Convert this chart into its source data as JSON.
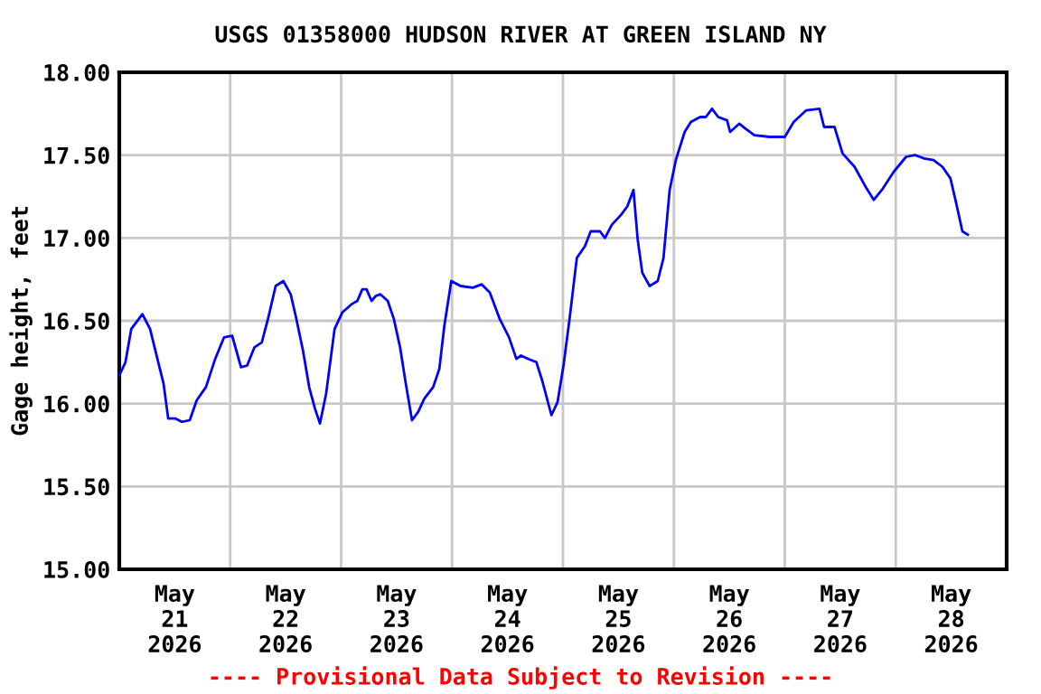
{
  "chart_data": {
    "type": "line",
    "title": "USGS 01358000 HUDSON RIVER AT GREEN ISLAND NY",
    "ylabel": "Gage height, feet",
    "annotations": [
      "---- Provisional Data Subject to Revision ----"
    ],
    "x": [
      "2026-05-21T00:00",
      "2026-05-21T01:20",
      "2026-05-21T02:35",
      "2026-05-21T05:00",
      "2026-05-21T06:40",
      "2026-05-21T08:15",
      "2026-05-21T09:35",
      "2026-05-21T10:35",
      "2026-05-21T12:10",
      "2026-05-21T13:30",
      "2026-05-21T15:15",
      "2026-05-21T16:45",
      "2026-05-21T18:45",
      "2026-05-21T20:45",
      "2026-05-21T22:40",
      "2026-05-22T00:25",
      "2026-05-22T01:20",
      "2026-05-22T02:20",
      "2026-05-22T03:40",
      "2026-05-22T05:15",
      "2026-05-22T06:50",
      "2026-05-22T08:10",
      "2026-05-22T09:50",
      "2026-05-22T11:30",
      "2026-05-22T13:05",
      "2026-05-22T14:10",
      "2026-05-22T15:45",
      "2026-05-22T17:05",
      "2026-05-22T18:20",
      "2026-05-22T19:25",
      "2026-05-22T20:45",
      "2026-05-22T22:35",
      "2026-05-23T00:15",
      "2026-05-23T02:15",
      "2026-05-23T03:30",
      "2026-05-23T04:35",
      "2026-05-23T05:30",
      "2026-05-23T06:35",
      "2026-05-23T07:30",
      "2026-05-23T08:30",
      "2026-05-23T10:05",
      "2026-05-23T11:25",
      "2026-05-23T12:45",
      "2026-05-23T14:00",
      "2026-05-23T15:20",
      "2026-05-23T16:40",
      "2026-05-23T18:00",
      "2026-05-23T19:55",
      "2026-05-23T21:15",
      "2026-05-23T22:20",
      "2026-05-23T23:50",
      "2026-05-24T01:50",
      "2026-05-24T04:30",
      "2026-05-24T06:25",
      "2026-05-24T08:10",
      "2026-05-24T10:20",
      "2026-05-24T12:20",
      "2026-05-24T13:55",
      "2026-05-24T14:55",
      "2026-05-24T16:30",
      "2026-05-24T18:15",
      "2026-05-24T19:30",
      "2026-05-24T21:30",
      "2026-05-24T22:50",
      "2026-05-25T00:10",
      "2026-05-25T01:25",
      "2026-05-25T03:00",
      "2026-05-25T04:45",
      "2026-05-25T06:00",
      "2026-05-25T08:00",
      "2026-05-25T09:05",
      "2026-05-25T10:35",
      "2026-05-25T12:35",
      "2026-05-25T13:55",
      "2026-05-25T15:15",
      "2026-05-25T16:10",
      "2026-05-25T17:10",
      "2026-05-25T18:45",
      "2026-05-25T20:30",
      "2026-05-25T21:45",
      "2026-05-25T23:05",
      "2026-05-26T00:25",
      "2026-05-26T02:20",
      "2026-05-26T03:40",
      "2026-05-26T05:40",
      "2026-05-26T06:55",
      "2026-05-26T08:15",
      "2026-05-26T09:35",
      "2026-05-26T11:30",
      "2026-05-26T12:10",
      "2026-05-26T14:10",
      "2026-05-26T15:30",
      "2026-05-26T17:25",
      "2026-05-26T20:45",
      "2026-05-27T00:00",
      "2026-05-27T01:55",
      "2026-05-27T04:35",
      "2026-05-27T07:30",
      "2026-05-27T08:30",
      "2026-05-27T10:45",
      "2026-05-27T12:30",
      "2026-05-27T15:05",
      "2026-05-27T17:40",
      "2026-05-27T19:15",
      "2026-05-27T21:00",
      "2026-05-27T23:35",
      "2026-05-28T02:15",
      "2026-05-28T04:10",
      "2026-05-28T06:10",
      "2026-05-28T08:10",
      "2026-05-28T10:05",
      "2026-05-28T11:50",
      "2026-05-28T13:05",
      "2026-05-28T14:25",
      "2026-05-28T15:35"
    ],
    "series": [
      {
        "color": "#0000ff",
        "values": [
          16.17,
          16.25,
          16.45,
          16.54,
          16.45,
          16.27,
          16.12,
          15.91,
          15.91,
          15.89,
          15.9,
          16.02,
          16.1,
          16.27,
          16.4,
          16.41,
          16.32,
          16.22,
          16.23,
          16.34,
          16.37,
          16.51,
          16.71,
          16.74,
          16.66,
          16.53,
          16.32,
          16.1,
          15.97,
          15.88,
          16.06,
          16.45,
          16.55,
          16.6,
          16.62,
          16.69,
          16.69,
          16.62,
          16.65,
          16.66,
          16.62,
          16.51,
          16.34,
          16.12,
          15.9,
          15.95,
          16.03,
          16.1,
          16.21,
          16.47,
          16.74,
          16.71,
          16.7,
          16.72,
          16.67,
          16.51,
          16.4,
          16.27,
          16.29,
          16.27,
          16.25,
          16.14,
          15.93,
          16.01,
          16.24,
          16.51,
          16.88,
          16.95,
          17.04,
          17.04,
          17.0,
          17.08,
          17.14,
          17.19,
          17.29,
          16.99,
          16.79,
          16.71,
          16.74,
          16.88,
          17.29,
          17.47,
          17.64,
          17.7,
          17.73,
          17.73,
          17.78,
          17.73,
          17.71,
          17.64,
          17.69,
          17.66,
          17.62,
          17.61,
          17.61,
          17.7,
          17.77,
          17.78,
          17.67,
          17.67,
          17.51,
          17.43,
          17.3,
          17.23,
          17.29,
          17.4,
          17.49,
          17.5,
          17.48,
          17.47,
          17.43,
          17.36,
          17.21,
          17.04,
          17.02
        ]
      }
    ],
    "xlim": [
      "2026-05-21T00:00",
      "2026-05-29T00:00"
    ],
    "xticks": [
      {
        "value": "2026-05-21T12:00",
        "label": "May\n21\n2026"
      },
      {
        "value": "2026-05-22T00:00",
        "label": null
      },
      {
        "value": "2026-05-22T12:00",
        "label": "May\n22\n2026"
      },
      {
        "value": "2026-05-23T00:00",
        "label": null
      },
      {
        "value": "2026-05-23T12:00",
        "label": "May\n23\n2026"
      },
      {
        "value": "2026-05-24T00:00",
        "label": null
      },
      {
        "value": "2026-05-24T12:00",
        "label": "May\n24\n2026"
      },
      {
        "value": "2026-05-25T00:00",
        "label": null
      },
      {
        "value": "2026-05-25T12:00",
        "label": "May\n25\n2026"
      },
      {
        "value": "2026-05-26T00:00",
        "label": null
      },
      {
        "value": "2026-05-26T12:00",
        "label": "May\n26\n2026"
      },
      {
        "value": "2026-05-27T00:00",
        "label": null
      },
      {
        "value": "2026-05-27T12:00",
        "label": "May\n27\n2026"
      },
      {
        "value": "2026-05-28T00:00",
        "label": null
      },
      {
        "value": "2026-05-28T12:00",
        "label": "May\n28\n2026"
      }
    ],
    "ylim": [
      15,
      18
    ],
    "yticks": [
      {
        "value": 15,
        "label": "15.00"
      },
      {
        "value": 15.5,
        "label": "15.50"
      },
      {
        "value": 16,
        "label": "16.00"
      },
      {
        "value": 16.5,
        "label": "16.50"
      },
      {
        "value": 17,
        "label": "17.00"
      },
      {
        "value": 17.5,
        "label": "17.50"
      },
      {
        "value": 18,
        "label": "18.00"
      }
    ],
    "grid": true,
    "line_style": "solid",
    "marker": "none",
    "legend": false
  }
}
